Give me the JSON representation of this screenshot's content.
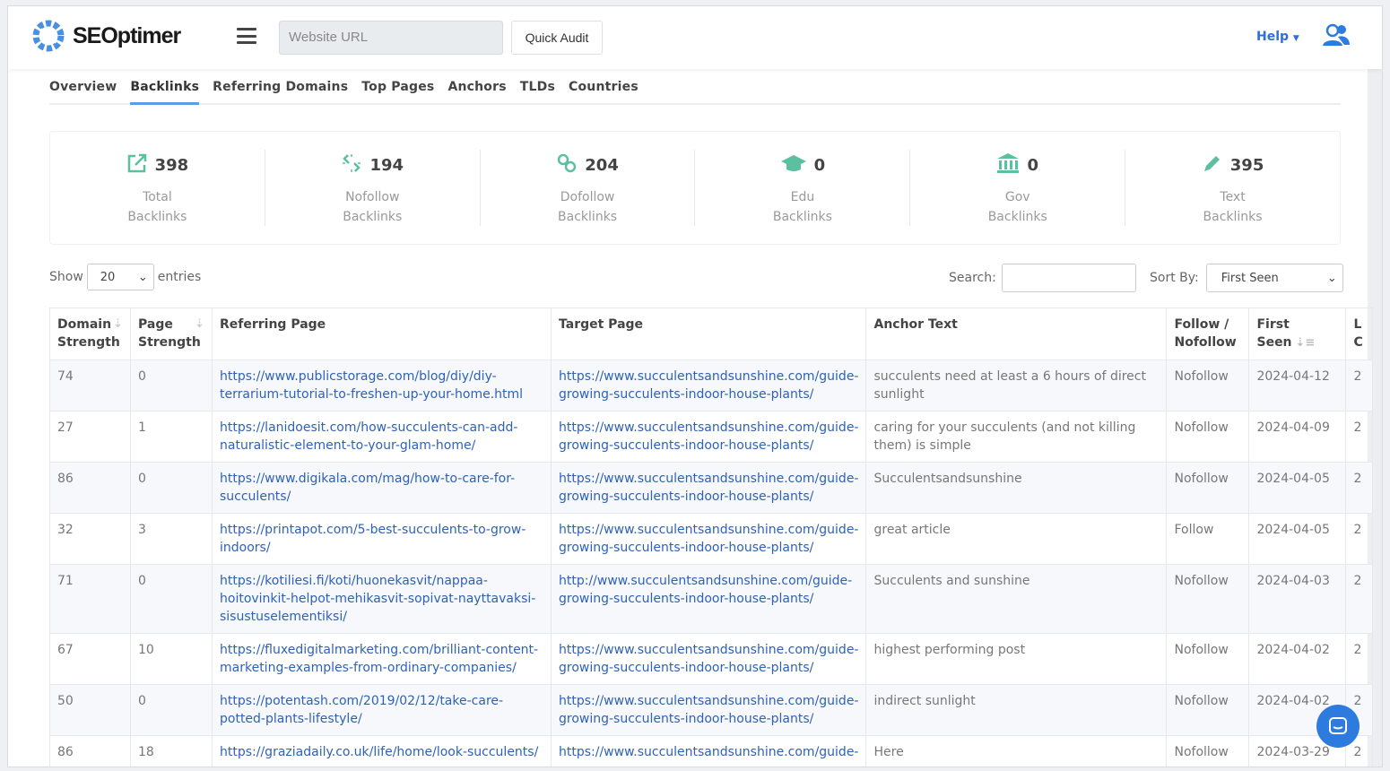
{
  "header": {
    "brand": "SEOptimer",
    "url_placeholder": "Website URL",
    "quick_audit": "Quick Audit",
    "help": "Help"
  },
  "tabs": [
    "Overview",
    "Backlinks",
    "Referring Domains",
    "Top Pages",
    "Anchors",
    "TLDs",
    "Countries"
  ],
  "active_tab": "Backlinks",
  "stats": [
    {
      "icon": "external-link-icon",
      "value": "398",
      "label1": "Total",
      "label2": "Backlinks"
    },
    {
      "icon": "broken-link-icon",
      "value": "194",
      "label1": "Nofollow",
      "label2": "Backlinks"
    },
    {
      "icon": "link-icon",
      "value": "204",
      "label1": "Dofollow",
      "label2": "Backlinks"
    },
    {
      "icon": "graduation-cap-icon",
      "value": "0",
      "label1": "Edu",
      "label2": "Backlinks"
    },
    {
      "icon": "government-building-icon",
      "value": "0",
      "label1": "Gov",
      "label2": "Backlinks"
    },
    {
      "icon": "pencil-icon",
      "value": "395",
      "label1": "Text",
      "label2": "Backlinks"
    }
  ],
  "controls": {
    "show": "Show",
    "entries_value": "20",
    "entries": "entries",
    "search": "Search:",
    "sort_by": "Sort By:",
    "sort_value": "First Seen"
  },
  "table": {
    "headers": [
      "Domain Strength",
      "Page Strength",
      "Referring Page",
      "Target Page",
      "Anchor Text",
      "Follow / Nofollow",
      "First Seen",
      "L C"
    ],
    "rows": [
      [
        "74",
        "0",
        "https://www.publicstorage.com/blog/diy/diy-terrarium-tutorial-to-freshen-up-your-home.html",
        "https://www.succulentsandsunshine.com/guide-growing-succulents-indoor-house-plants/",
        "succulents need at least a 6 hours of direct sunlight",
        "Nofollow",
        "2024-04-12",
        "2"
      ],
      [
        "27",
        "1",
        "https://lanidoesit.com/how-succulents-can-add-naturalistic-element-to-your-glam-home/",
        "https://www.succulentsandsunshine.com/guide-growing-succulents-indoor-house-plants/",
        "caring for your succulents (and not killing them) is simple",
        "Nofollow",
        "2024-04-09",
        "2"
      ],
      [
        "86",
        "0",
        "https://www.digikala.com/mag/how-to-care-for-succulents/",
        "https://www.succulentsandsunshine.com/guide-growing-succulents-indoor-house-plants/",
        "Succulentsandsunshine",
        "Nofollow",
        "2024-04-05",
        "2"
      ],
      [
        "32",
        "3",
        "https://printapot.com/5-best-succulents-to-grow-indoors/",
        "https://www.succulentsandsunshine.com/guide-growing-succulents-indoor-house-plants/",
        "great article",
        "Follow",
        "2024-04-05",
        "2"
      ],
      [
        "71",
        "0",
        "https://kotiliesi.fi/koti/huonekasvit/nappaa-hoitovinkit-helpot-mehikasvit-sopivat-nayttavaksi-sisustuselementiksi/",
        "http://www.succulentsandsunshine.com/guide-growing-succulents-indoor-house-plants/",
        "Succulents and sunshine",
        "Nofollow",
        "2024-04-03",
        "2"
      ],
      [
        "67",
        "10",
        "https://fluxedigitalmarketing.com/brilliant-content-marketing-examples-from-ordinary-companies/",
        "https://www.succulentsandsunshine.com/guide-growing-succulents-indoor-house-plants/",
        "highest performing post",
        "Nofollow",
        "2024-04-02",
        "2"
      ],
      [
        "50",
        "0",
        "https://potentash.com/2019/02/12/take-care-potted-plants-lifestyle/",
        "https://www.succulentsandsunshine.com/guide-growing-succulents-indoor-house-plants/",
        "indirect sunlight",
        "Nofollow",
        "2024-04-02",
        "2"
      ],
      [
        "86",
        "18",
        "https://graziadaily.co.uk/life/home/look-succulents/",
        "https://www.succulentsandsunshine.com/guide-",
        "Here",
        "Nofollow",
        "2024-03-29",
        "2"
      ]
    ]
  },
  "colors": {
    "accent": "#5bbfa0",
    "link": "#2e62b8",
    "brand": "#4a90e2"
  }
}
